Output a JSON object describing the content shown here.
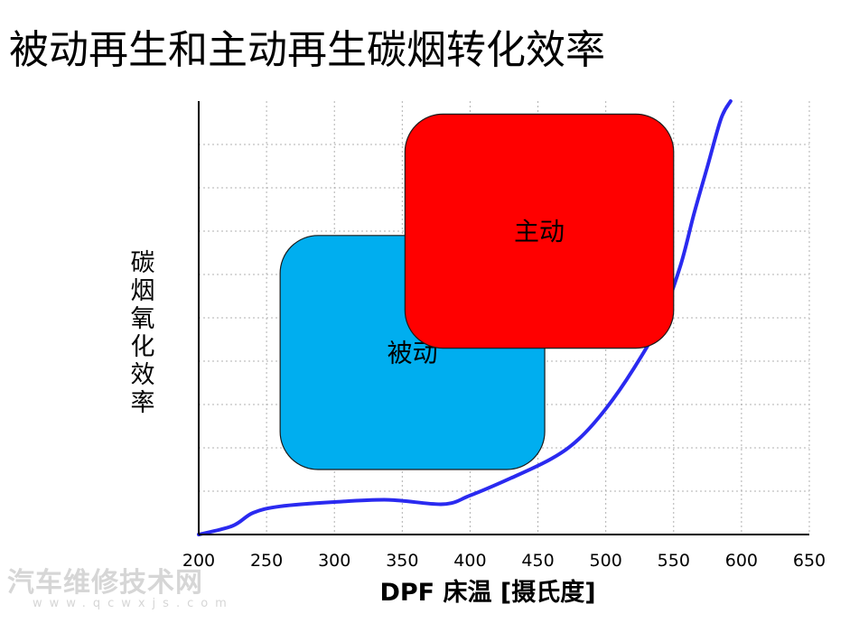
{
  "title": "被动再生和主动再生碳烟转化效率",
  "watermark": {
    "main": "汽车维修技术网",
    "sub": "www.qcwxjs.com"
  },
  "colors": {
    "curve": "#2a2af0",
    "passive": "#00aeef",
    "active": "#ff0000",
    "grid": "#b0b0b0",
    "axis": "#000000"
  },
  "chart_data": {
    "type": "line",
    "xlabel": "DPF 床温 [摄氏度]",
    "ylabel": "碳烟氧化效率",
    "xlim": [
      200,
      650
    ],
    "ylim": [
      0,
      10
    ],
    "x_ticks": [
      200,
      250,
      300,
      350,
      400,
      450,
      500,
      550,
      600,
      650
    ],
    "y_gridlines": 10,
    "grid": true,
    "series": [
      {
        "x": [
          200,
          225,
          240,
          260,
          300,
          340,
          380,
          400,
          430,
          460,
          480,
          500,
          520,
          540,
          555,
          565,
          575,
          585,
          592
        ],
        "y": [
          0,
          0.2,
          0.5,
          0.65,
          0.75,
          0.8,
          0.7,
          0.9,
          1.3,
          1.75,
          2.2,
          2.9,
          3.8,
          4.9,
          6.2,
          7.4,
          8.5,
          9.6,
          10
        ]
      }
    ],
    "regions": [
      {
        "label": "被动",
        "x_range": [
          260,
          455
        ],
        "y_range": [
          1.5,
          6.9
        ],
        "color": "passive"
      },
      {
        "label": "主动",
        "x_range": [
          352,
          550
        ],
        "y_range": [
          4.3,
          9.7
        ],
        "color": "active"
      }
    ]
  }
}
